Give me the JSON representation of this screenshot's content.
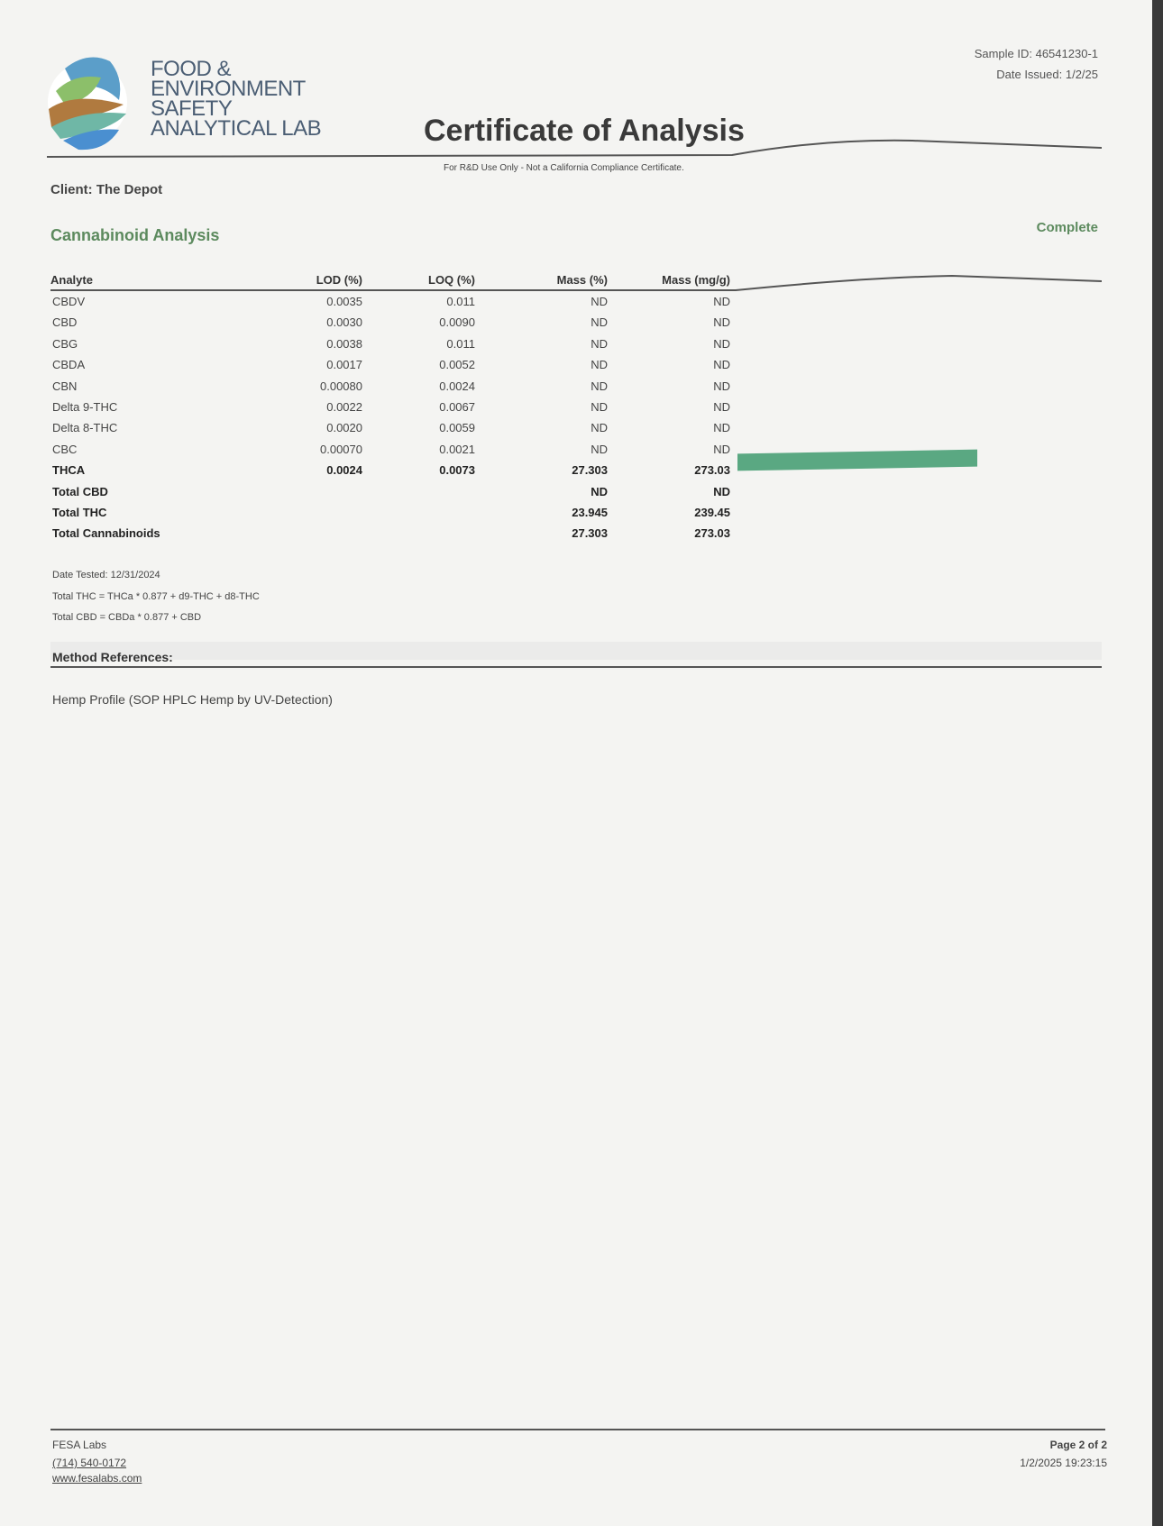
{
  "header": {
    "logo_text": [
      "FOOD &",
      "ENVIRONMENT",
      "SAFETY",
      "ANALYTICAL LAB"
    ],
    "sample_id": "Sample ID: 46541230-1",
    "date_issued": "Date Issued: 1/2/25",
    "title": "Certificate of Analysis",
    "subtitle": "For R&D Use Only - Not a California Compliance Certificate."
  },
  "client": "Client: The Depot",
  "section": {
    "title": "Cannabinoid Analysis",
    "status": "Complete"
  },
  "table": {
    "columns": [
      "Analyte",
      "LOD (%)",
      "LOQ (%)",
      "Mass (%)",
      "Mass (mg/g)"
    ],
    "rows": [
      {
        "analyte": "CBDV",
        "lod": "0.0035",
        "loq": "0.011",
        "mass_pct": "ND",
        "mass_mg": "ND"
      },
      {
        "analyte": "CBD",
        "lod": "0.0030",
        "loq": "0.0090",
        "mass_pct": "ND",
        "mass_mg": "ND"
      },
      {
        "analyte": "CBG",
        "lod": "0.0038",
        "loq": "0.011",
        "mass_pct": "ND",
        "mass_mg": "ND"
      },
      {
        "analyte": "CBDA",
        "lod": "0.0017",
        "loq": "0.0052",
        "mass_pct": "ND",
        "mass_mg": "ND"
      },
      {
        "analyte": "CBN",
        "lod": "0.00080",
        "loq": "0.0024",
        "mass_pct": "ND",
        "mass_mg": "ND"
      },
      {
        "analyte": "Delta 9-THC",
        "lod": "0.0022",
        "loq": "0.0067",
        "mass_pct": "ND",
        "mass_mg": "ND"
      },
      {
        "analyte": "Delta 8-THC",
        "lod": "0.0020",
        "loq": "0.0059",
        "mass_pct": "ND",
        "mass_mg": "ND"
      },
      {
        "analyte": "CBC",
        "lod": "0.00070",
        "loq": "0.0021",
        "mass_pct": "ND",
        "mass_mg": "ND"
      },
      {
        "analyte": "THCA",
        "lod": "0.0024",
        "loq": "0.0073",
        "mass_pct": "27.303",
        "mass_mg": "273.03",
        "bold": true
      },
      {
        "analyte": "Total CBD",
        "lod": "",
        "loq": "",
        "mass_pct": "ND",
        "mass_mg": "ND",
        "bold": true
      },
      {
        "analyte": "Total THC",
        "lod": "",
        "loq": "",
        "mass_pct": "23.945",
        "mass_mg": "239.45",
        "bold": true
      },
      {
        "analyte": "Total Cannabinoids",
        "lod": "",
        "loq": "",
        "mass_pct": "27.303",
        "mass_mg": "273.03",
        "bold": true
      }
    ],
    "bar_color": "#5aa882"
  },
  "notes": {
    "date_tested": "Date Tested: 12/31/2024",
    "total_thc_formula": "Total THC = THCa * 0.877 + d9-THC + d8-THC",
    "total_cbd_formula": "Total CBD = CBDa * 0.877 + CBD"
  },
  "methods": {
    "title": "Method References:",
    "items": [
      "Hemp Profile (SOP HPLC Hemp by UV-Detection)"
    ]
  },
  "footer": {
    "lab": "FESA Labs",
    "phone": "(714) 540-0172",
    "website": "www.fesalabs.com",
    "page": "Page 2 of 2",
    "timestamp": "1/2/2025 19:23:15"
  }
}
